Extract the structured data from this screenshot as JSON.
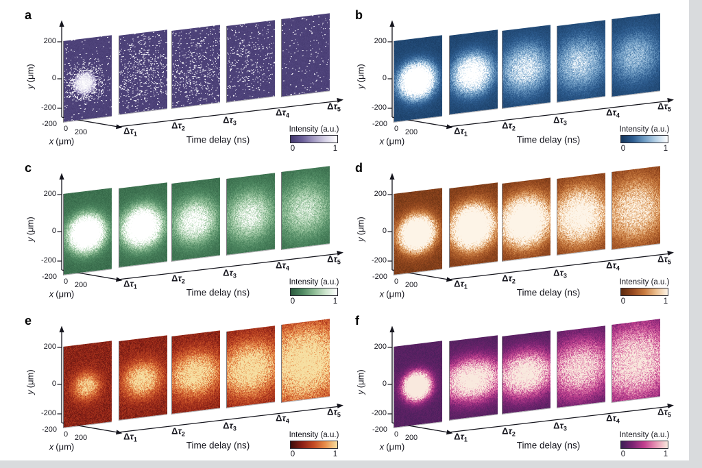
{
  "figure": {
    "background": "#ffffff",
    "edge_strip_color": "#d9dbdd",
    "text_color": "#15151d"
  },
  "chart_data": [
    {
      "panel_label": "a",
      "type": "heatmap",
      "style": "photon-dots",
      "colormap": [
        "#44396f",
        "#6b5f99",
        "#a59cc4",
        "#d8d4e8",
        "#ffffff"
      ],
      "bg_level": 0.05,
      "x_axis": {
        "var": "x",
        "unit": "(μm)",
        "ticks": [
          "-200",
          "0",
          "200"
        ],
        "range_um": [
          -200,
          200
        ]
      },
      "y_axis": {
        "var": "y",
        "unit": "(μm)",
        "ticks": [
          "200",
          "0",
          "-200"
        ],
        "range_um": [
          -200,
          200
        ]
      },
      "time_axis_label": "Time delay (ns)",
      "colorbar": {
        "label": "Intensity (a.u.)",
        "min": "0",
        "max": "1"
      },
      "frames": [
        {
          "delta": "Δ",
          "tau": "τ",
          "sub": "1",
          "dot_peak": 0.6,
          "sigma": 0.12,
          "core": 1.2,
          "cx": 0.43,
          "cy": 0.55
        },
        {
          "delta": "Δ",
          "tau": "τ",
          "sub": "2",
          "dot_peak": 0.13,
          "sigma": 0.26
        },
        {
          "delta": "Δ",
          "tau": "τ",
          "sub": "3",
          "dot_peak": 0.1,
          "sigma": 0.3
        },
        {
          "delta": "Δ",
          "tau": "τ",
          "sub": "4",
          "dot_peak": 0.07,
          "sigma": 0.28
        },
        {
          "delta": "Δ",
          "tau": "τ",
          "sub": "5",
          "dot_peak": 0.012,
          "sigma": 0.3
        }
      ]
    },
    {
      "panel_label": "b",
      "type": "heatmap",
      "style": "smooth",
      "colormap": [
        "#16375c",
        "#2d5c8f",
        "#6e9cc4",
        "#b8d3e8",
        "#ffffff"
      ],
      "bg_level": 0.1,
      "x_axis": {
        "var": "x",
        "unit": "(μm)",
        "ticks": [
          "-200",
          "0",
          "200"
        ],
        "range_um": [
          -200,
          200
        ]
      },
      "y_axis": {
        "var": "y",
        "unit": "(μm)",
        "ticks": [
          "200",
          "0",
          "-200"
        ],
        "range_um": [
          -200,
          200
        ]
      },
      "time_axis_label": "Time delay (ns)",
      "colorbar": {
        "label": "Intensity (a.u.)",
        "min": "0",
        "max": "1"
      },
      "frames": [
        {
          "delta": "Δ",
          "tau": "τ",
          "sub": "1",
          "peak": 2.6,
          "sigma": 0.13
        },
        {
          "delta": "Δ",
          "tau": "τ",
          "sub": "2",
          "peak": 1.5,
          "sigma": 0.16
        },
        {
          "delta": "Δ",
          "tau": "τ",
          "sub": "3",
          "peak": 0.85,
          "sigma": 0.21
        },
        {
          "delta": "Δ",
          "tau": "τ",
          "sub": "4",
          "peak": 0.7,
          "sigma": 0.23
        },
        {
          "delta": "Δ",
          "tau": "τ",
          "sub": "5",
          "peak": 0.55,
          "sigma": 0.22
        }
      ]
    },
    {
      "panel_label": "c",
      "type": "heatmap",
      "style": "smooth",
      "colormap": [
        "#2b5a3e",
        "#4e8861",
        "#8cbb93",
        "#cde5cd",
        "#ffffff"
      ],
      "bg_level": 0.12,
      "x_axis": {
        "var": "x",
        "unit": "(μm)",
        "ticks": [
          "-200",
          "0",
          "200"
        ],
        "range_um": [
          -200,
          200
        ]
      },
      "y_axis": {
        "var": "y",
        "unit": "(μm)",
        "ticks": [
          "200",
          "0",
          "-200"
        ],
        "range_um": [
          -200,
          200
        ]
      },
      "time_axis_label": "Time delay (ns)",
      "colorbar": {
        "label": "Intensity (a.u.)",
        "min": "0",
        "max": "1"
      },
      "frames": [
        {
          "delta": "Δ",
          "tau": "τ",
          "sub": "1",
          "peak": 2.8,
          "sigma": 0.13
        },
        {
          "delta": "Δ",
          "tau": "τ",
          "sub": "2",
          "peak": 2.3,
          "sigma": 0.15
        },
        {
          "delta": "Δ",
          "tau": "τ",
          "sub": "3",
          "peak": 1.05,
          "sigma": 0.18
        },
        {
          "delta": "Δ",
          "tau": "τ",
          "sub": "4",
          "peak": 0.8,
          "sigma": 0.21
        },
        {
          "delta": "Δ",
          "tau": "τ",
          "sub": "5",
          "peak": 0.65,
          "sigma": 0.23
        }
      ]
    },
    {
      "panel_label": "d",
      "type": "heatmap",
      "style": "smooth",
      "colormap": [
        "#5a2a10",
        "#96491f",
        "#c87a3e",
        "#ecbe8d",
        "#fdf4e7"
      ],
      "bg_level": 0.16,
      "x_axis": {
        "var": "x",
        "unit": "(μm)",
        "ticks": [
          "-200",
          "0",
          "200"
        ],
        "range_um": [
          -200,
          200
        ]
      },
      "y_axis": {
        "var": "y",
        "unit": "(μm)",
        "ticks": [
          "200",
          "0",
          "-200"
        ],
        "range_um": [
          -200,
          200
        ]
      },
      "time_axis_label": "Time delay (ns)",
      "colorbar": {
        "label": "Intensity (a.u.)",
        "min": "0",
        "max": "1"
      },
      "frames": [
        {
          "delta": "Δ",
          "tau": "τ",
          "sub": "1",
          "peak": 2.8,
          "sigma": 0.13
        },
        {
          "delta": "Δ",
          "tau": "τ",
          "sub": "2",
          "peak": 2.5,
          "sigma": 0.17
        },
        {
          "delta": "Δ",
          "tau": "τ",
          "sub": "3",
          "peak": 2.1,
          "sigma": 0.2
        },
        {
          "delta": "Δ",
          "tau": "τ",
          "sub": "4",
          "peak": 1.35,
          "sigma": 0.24
        },
        {
          "delta": "Δ",
          "tau": "τ",
          "sub": "5",
          "peak": 0.85,
          "sigma": 0.28
        }
      ]
    },
    {
      "panel_label": "e",
      "type": "heatmap",
      "style": "smooth",
      "colormap": [
        "#3c0d0b",
        "#8c2016",
        "#c44b25",
        "#e9904c",
        "#f6dfa2"
      ],
      "bg_level": 0.26,
      "x_axis": {
        "var": "x",
        "unit": "(μm)",
        "ticks": [
          "-200",
          "0",
          "200"
        ],
        "range_um": [
          -200,
          200
        ]
      },
      "y_axis": {
        "var": "y",
        "unit": "(μm)",
        "ticks": [
          "200",
          "0",
          "-200"
        ],
        "range_um": [
          -200,
          200
        ]
      },
      "time_axis_label": "Time delay (ns)",
      "colorbar": {
        "label": "Intensity (a.u.)",
        "min": "0",
        "max": "1"
      },
      "frames": [
        {
          "delta": "Δ",
          "tau": "τ",
          "sub": "1",
          "peak": 0.8,
          "sigma": 0.11
        },
        {
          "delta": "Δ",
          "tau": "τ",
          "sub": "2",
          "peak": 0.9,
          "sigma": 0.15,
          "aspect": 1.1
        },
        {
          "delta": "Δ",
          "tau": "τ",
          "sub": "3",
          "peak": 0.95,
          "sigma": 0.19,
          "aspect": 1.2
        },
        {
          "delta": "Δ",
          "tau": "τ",
          "sub": "4",
          "peak": 1.0,
          "sigma": 0.24,
          "aspect": 1.15
        },
        {
          "delta": "Δ",
          "tau": "τ",
          "sub": "5",
          "peak": 1.1,
          "sigma": 0.33,
          "aspect": 1.1
        }
      ]
    },
    {
      "panel_label": "f",
      "type": "heatmap",
      "style": "smooth",
      "colormap": [
        "#3c1f55",
        "#7c2473",
        "#c2418f",
        "#e895b5",
        "#f9e9de"
      ],
      "bg_level": 0.1,
      "x_axis": {
        "var": "x",
        "unit": "(μm)",
        "ticks": [
          "-200",
          "0",
          "200"
        ],
        "range_um": [
          -200,
          200
        ]
      },
      "y_axis": {
        "var": "y",
        "unit": "(μm)",
        "ticks": [
          "200",
          "0",
          "-200"
        ],
        "range_um": [
          -200,
          200
        ]
      },
      "time_axis_label": "Time delay (ns)",
      "colorbar": {
        "label": "Intensity (a.u.)",
        "min": "0",
        "max": "1"
      },
      "frames": [
        {
          "delta": "Δ",
          "tau": "τ",
          "sub": "1",
          "peak": 3.0,
          "sigma": 0.1
        },
        {
          "delta": "Δ",
          "tau": "τ",
          "sub": "2",
          "peak": 1.5,
          "sigma": 0.165,
          "aspect": 1.45
        },
        {
          "delta": "Δ",
          "tau": "τ",
          "sub": "3",
          "peak": 1.35,
          "sigma": 0.185,
          "aspect": 1.3
        },
        {
          "delta": "Δ",
          "tau": "τ",
          "sub": "4",
          "peak": 1.0,
          "sigma": 0.25,
          "aspect": 1.15
        },
        {
          "delta": "Δ",
          "tau": "τ",
          "sub": "5",
          "peak": 1.05,
          "sigma": 0.33,
          "aspect": 1.08
        }
      ]
    }
  ]
}
